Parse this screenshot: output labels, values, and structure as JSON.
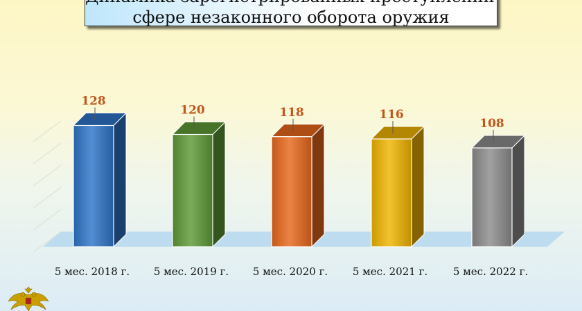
{
  "title": {
    "line1": "Динамика зарегистрированных преступлений в",
    "line2": "сфере незаконного оборота оружия"
  },
  "colors": {
    "blue": "#2f74c8",
    "green": "#5e9a37",
    "orange": "#e8681c",
    "yellow": "#f0b400",
    "gray": "#8c8c8c",
    "label": "#c0561b"
  },
  "chart_data": {
    "type": "bar",
    "categories": [
      "5 мес. 2018 г.",
      "5 мес. 2019 г.",
      "5 мес. 2020 г.",
      "5 мес. 2021 г.",
      "5 мес. 2022 г."
    ],
    "values": [
      128,
      120,
      118,
      116,
      108
    ],
    "data_labels": [
      "128",
      "120",
      "118",
      "116",
      "108"
    ],
    "title": "",
    "xlabel": "",
    "ylabel": "",
    "grid": true,
    "legend": "none",
    "style": "3d-columns"
  }
}
